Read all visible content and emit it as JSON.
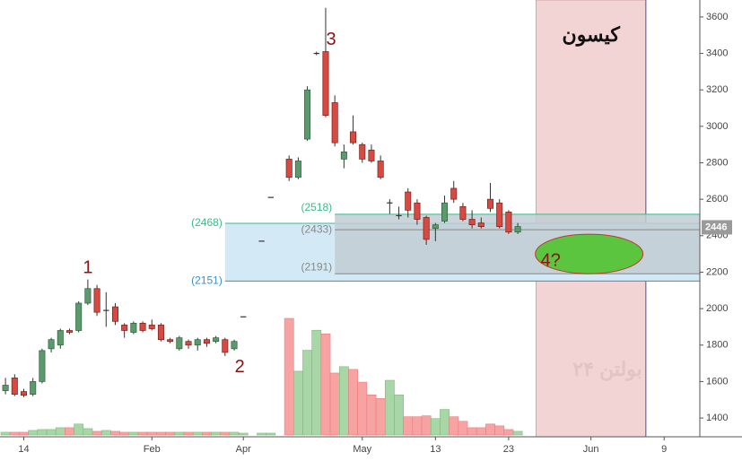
{
  "chart_data": {
    "type": "candlestick",
    "x": [
      0,
      1,
      2,
      3,
      4,
      5,
      6,
      7,
      8,
      9,
      10,
      11,
      12,
      13,
      14,
      15,
      16,
      17,
      18,
      19,
      20,
      21,
      22,
      23,
      24,
      25,
      26,
      27,
      28,
      29,
      30,
      31,
      32,
      33,
      34,
      35,
      36,
      37,
      38,
      39,
      40,
      41,
      42,
      43,
      44,
      45,
      46,
      47,
      48,
      49,
      50,
      51,
      52,
      53,
      54,
      55,
      56
    ],
    "open": [
      1550,
      1620,
      1545,
      1530,
      1600,
      1780,
      1800,
      1880,
      1880,
      2030,
      2110,
      1990,
      2010,
      1910,
      1870,
      1920,
      1910,
      1910,
      1830,
      1780,
      1820,
      1800,
      1830,
      1820,
      1830,
      1780,
      1955,
      null,
      2370,
      2610,
      null,
      2820,
      2720,
      2930,
      3400,
      3410,
      3130,
      2820,
      2970,
      2900,
      2870,
      2810,
      2580,
      2510,
      2640,
      2580,
      2500,
      2440,
      2480,
      2660,
      2560,
      2490,
      2470,
      2600,
      2580,
      2530,
      2420
    ],
    "high": [
      1620,
      1640,
      1560,
      1620,
      1780,
      1840,
      1890,
      1890,
      2040,
      2160,
      2130,
      2090,
      2030,
      1920,
      1930,
      1930,
      1940,
      1920,
      1840,
      1850,
      1830,
      1840,
      1840,
      1850,
      1840,
      1830,
      1955,
      null,
      2370,
      2610,
      null,
      2840,
      2830,
      3220,
      3410,
      3650,
      3170,
      2900,
      3060,
      2910,
      2900,
      2840,
      2600,
      2560,
      2660,
      2600,
      2510,
      2470,
      2620,
      2700,
      2580,
      2540,
      2500,
      2690,
      2600,
      2540,
      2470
    ],
    "low": [
      1530,
      1520,
      1515,
      1520,
      1590,
      1760,
      1780,
      1860,
      1870,
      2020,
      1960,
      1900,
      1910,
      1840,
      1860,
      1870,
      1880,
      1820,
      1810,
      1770,
      1780,
      1770,
      1790,
      1810,
      1740,
      1770,
      1955,
      null,
      2370,
      2610,
      null,
      2700,
      2710,
      2920,
      3390,
      3050,
      2890,
      2770,
      2900,
      2800,
      2800,
      2710,
      2520,
      2490,
      2500,
      2460,
      2350,
      2370,
      2470,
      2580,
      2480,
      2440,
      2440,
      2530,
      2440,
      2410,
      2410
    ],
    "close": [
      1580,
      1530,
      1525,
      1600,
      1770,
      1830,
      1880,
      1870,
      2030,
      2110,
      1980,
      1990,
      1930,
      1880,
      1920,
      1880,
      1890,
      1830,
      1820,
      1840,
      1800,
      1830,
      1810,
      1840,
      1760,
      1820,
      1955,
      null,
      2370,
      2610,
      null,
      2720,
      2810,
      3200,
      3400,
      3060,
      2910,
      2860,
      2910,
      2820,
      2810,
      2720,
      2580,
      2510,
      2540,
      2490,
      2380,
      2460,
      2580,
      2600,
      2490,
      2460,
      2450,
      2550,
      2450,
      2420,
      2450
    ],
    "volume": [
      3,
      3,
      3,
      5,
      6,
      6,
      8,
      8,
      12,
      7,
      4,
      5,
      4,
      3,
      3,
      3,
      3,
      3,
      3,
      3,
      3,
      3,
      3,
      3,
      3,
      3,
      2,
      null,
      2,
      2,
      null,
      128,
      70,
      93,
      115,
      111,
      68,
      75,
      72,
      58,
      44,
      40,
      60,
      44,
      20,
      20,
      21,
      18,
      28,
      20,
      15,
      8,
      8,
      12,
      10,
      6,
      4
    ],
    "up_color": "#5b9a6c",
    "down_color": "#d64a42",
    "volume_up_color": "#a9d6a7",
    "volume_down_color": "#f7a3a3",
    "xlim": [
      -0.6,
      75.9
    ],
    "ylim": [
      1297,
      3693
    ],
    "xticks": [
      {
        "value": 2,
        "label": "14"
      },
      {
        "value": 16,
        "label": "Feb"
      },
      {
        "value": 26,
        "label": "Apr"
      },
      {
        "value": 39,
        "label": "May"
      },
      {
        "value": 47,
        "label": "13"
      },
      {
        "value": 55,
        "label": "23"
      },
      {
        "value": 64,
        "label": "Jun"
      },
      {
        "value": 72,
        "label": "9"
      }
    ],
    "yticks": [
      1400,
      1600,
      1800,
      2000,
      2200,
      2400,
      2600,
      2800,
      3000,
      3200,
      3400,
      3600
    ],
    "last_price": 2446,
    "zones": [
      {
        "x_start": 24,
        "top": {
          "value": 2468,
          "label": "(2468)"
        },
        "bottom": {
          "value": 2151,
          "label": "(2151)"
        },
        "fill": "#d3e9f5",
        "top_color": "#3cb98a",
        "bottom_color": "#3a8fc6"
      },
      {
        "x_start": 36,
        "top": {
          "value": 2518,
          "label": "(2518)"
        },
        "bottom": {
          "value": 2191,
          "label": "(2191)"
        },
        "fill": "#c2ccd3",
        "top_color": "#3cb98a",
        "bottom_color": "#888888"
      }
    ],
    "level": {
      "x_start": 36,
      "value": {
        "value": 2433,
        "label": "(2433)"
      },
      "color": "#888888"
    },
    "highlight": {
      "x_start": 58,
      "x_end": 70,
      "label": "کیسون",
      "fill": "#f2d4d4"
    },
    "target": {
      "x": 63.8,
      "y": 2300,
      "fill": "#5cc540"
    },
    "annotations": [
      {
        "text": "1",
        "x": 9,
        "y": 2222
      },
      {
        "text": "2",
        "x": 25.6,
        "y": 1676
      },
      {
        "text": "3",
        "x": 35.6,
        "y": 3472
      },
      {
        "text": "4?",
        "x": 59.6,
        "y": 2261
      }
    ],
    "watermark": "بولتن ۲۴"
  }
}
